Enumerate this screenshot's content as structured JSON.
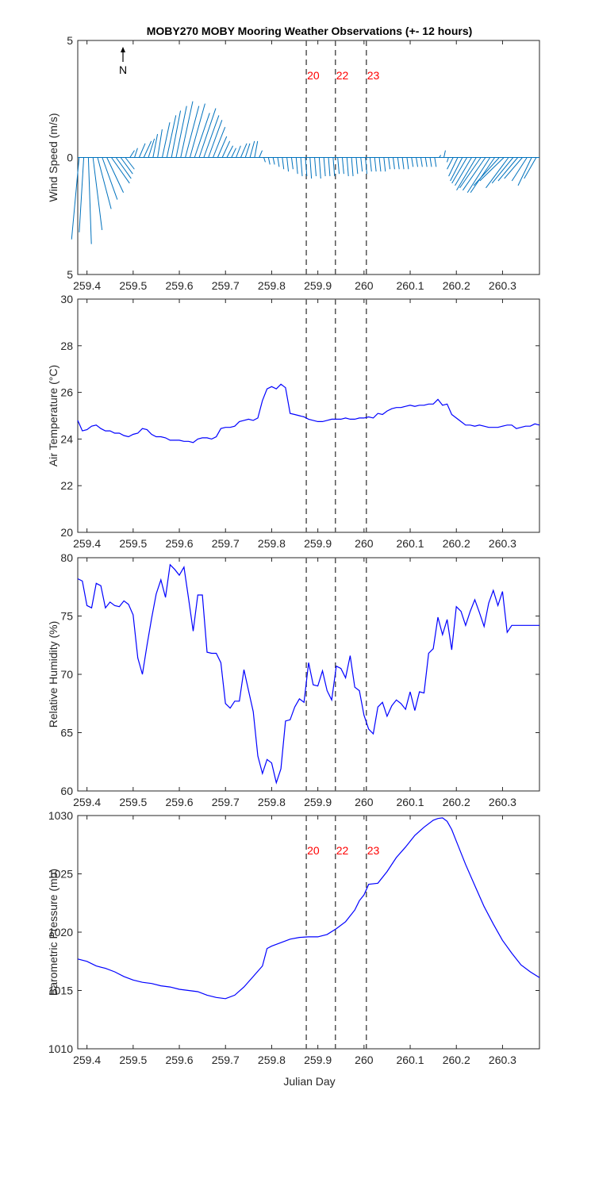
{
  "title": "MOBY270 MOBY Mooring Weather Observations (+- 12 hours)",
  "x_tick_labels": [
    "259.4",
    "259.5",
    "259.6",
    "259.7",
    "259.8",
    "259.9",
    "260",
    "260.1",
    "260.2",
    "260.3"
  ],
  "xlabel": "Julian Day",
  "north_label": "N",
  "colors": {
    "line": "#0000ff",
    "barb": "#0072bd",
    "marker_line": "#555555",
    "marker_text": "#ff0000",
    "axis": "#262626"
  },
  "chart_data": [
    {
      "id": "wind",
      "type": "line",
      "ylabel": "Wind Speed (m/s)",
      "ylim": [
        -5,
        5
      ],
      "xlim": [
        259.38,
        260.38
      ],
      "ytick_labels": [
        "5",
        "0",
        "5"
      ],
      "ytick_values": [
        5,
        0,
        -5
      ],
      "marker_labels": [
        "20",
        "22",
        "23"
      ],
      "marker_x": [
        259.875,
        259.938,
        260.005
      ],
      "series": [
        {
          "x": [
            259.383,
            259.393,
            259.403,
            259.413,
            259.423,
            259.433,
            259.443,
            259.453,
            259.463,
            259.473,
            259.483,
            259.493,
            259.503,
            259.513,
            259.523,
            259.533,
            259.543,
            259.553,
            259.563,
            259.573,
            259.583,
            259.593,
            259.603,
            259.613,
            259.623,
            259.633,
            259.643,
            259.653,
            259.663,
            259.673,
            259.683,
            259.693,
            259.703,
            259.713,
            259.723,
            259.733,
            259.743,
            259.753,
            259.763,
            259.773,
            259.783,
            259.793,
            259.803,
            259.813,
            259.823,
            259.833,
            259.843,
            259.853,
            259.863,
            259.873,
            259.883,
            259.893,
            259.903,
            259.913,
            259.923,
            259.933,
            259.943,
            259.953,
            259.963,
            259.973,
            259.983,
            259.993,
            260.003,
            260.013,
            260.023,
            260.033,
            260.043,
            260.053,
            260.063,
            260.073,
            260.083,
            260.093,
            260.103,
            260.113,
            260.123,
            260.133,
            260.143,
            260.153,
            260.163,
            260.173,
            260.183,
            260.193,
            260.203,
            260.213,
            260.223,
            260.233,
            260.243,
            260.253,
            260.263,
            260.273,
            260.283,
            260.293,
            260.303,
            260.313,
            260.323,
            260.333,
            260.343,
            260.353,
            260.363,
            260.373
          ],
          "u": [
            -0.5,
            -0.3,
            0.2,
            0.6,
            0.9,
            1.0,
            1.1,
            1.2,
            1.0,
            0.8,
            0.6,
            0.3,
            0.2,
            0.4,
            0.5,
            0.4,
            0.3,
            0.3,
            0.5,
            0.6,
            0.6,
            0.7,
            0.8,
            0.9,
            1.0,
            1.0,
            1.1,
            1.0,
            0.9,
            0.8,
            0.6,
            0.5,
            0.4,
            0.3,
            0.3,
            0.4,
            0.3,
            0.3,
            0.2,
            0.2,
            0.1,
            0.1,
            0.1,
            0.1,
            0.1,
            0.1,
            0.1,
            0.1,
            0.1,
            0.1,
            0.1,
            0.1,
            0.1,
            0.1,
            0.1,
            0.1,
            0.1,
            0.1,
            0.1,
            0.1,
            0.1,
            0.1,
            0.1,
            0.1,
            0.1,
            0.1,
            0.1,
            0.1,
            0.1,
            0.1,
            0.1,
            0.1,
            0.1,
            0.1,
            0.1,
            0.1,
            0.1,
            0.1,
            0.1,
            0.1,
            -0.1,
            -0.4,
            -0.6,
            -0.8,
            -1.0,
            -1.1,
            -1.3,
            -1.4,
            -1.5,
            -1.5,
            -1.6,
            -1.7,
            -1.6,
            -1.5,
            -1.4,
            -1.3,
            -1.2,
            -1.0,
            -0.9,
            -0.8
          ],
          "v": [
            -3.5,
            -3.2,
            -3.7,
            -3.1,
            -2.2,
            -1.8,
            -1.5,
            -1.1,
            -0.9,
            -0.7,
            -0.5,
            0.3,
            0.4,
            0.6,
            0.7,
            0.8,
            1.0,
            1.2,
            1.5,
            1.8,
            2.0,
            2.2,
            2.4,
            2.2,
            2.3,
            1.9,
            2.1,
            1.8,
            1.6,
            1.3,
            0.9,
            0.7,
            0.5,
            0.4,
            0.5,
            0.6,
            0.6,
            0.7,
            0.7,
            0.3,
            -0.2,
            -0.3,
            -0.3,
            -0.4,
            -0.5,
            -0.6,
            -0.5,
            -0.7,
            -0.8,
            -0.8,
            -0.9,
            -0.8,
            -0.9,
            -0.8,
            -0.8,
            -0.8,
            -0.7,
            -0.7,
            -0.8,
            -0.8,
            -0.7,
            -0.6,
            -0.7,
            -0.6,
            -0.6,
            -0.6,
            -0.6,
            -0.5,
            -0.5,
            -0.5,
            -0.5,
            -0.5,
            -0.4,
            -0.4,
            -0.4,
            -0.4,
            -0.4,
            -0.4,
            0.1,
            0.3,
            -0.2,
            -0.5,
            -0.8,
            -1.0,
            -1.1,
            -1.2,
            -1.4,
            -1.3,
            -1.4,
            -1.5,
            -1.5,
            -1.2,
            -1.0,
            -1.3,
            -1.1,
            -1.0,
            -0.9,
            -1.0,
            -1.2,
            -0.9
          ]
        }
      ]
    },
    {
      "id": "air_temp",
      "type": "line",
      "ylabel": "Air Temperature (°C)",
      "ylim": [
        20,
        30
      ],
      "xlim": [
        259.38,
        260.38
      ],
      "ytick_labels": [
        "20",
        "22",
        "24",
        "26",
        "28",
        "30"
      ],
      "ytick_values": [
        20,
        22,
        24,
        26,
        28,
        30
      ],
      "marker_x": [
        259.875,
        259.938,
        260.005
      ],
      "series": [
        {
          "x": [
            259.38,
            259.39,
            259.4,
            259.41,
            259.42,
            259.43,
            259.44,
            259.45,
            259.46,
            259.47,
            259.48,
            259.49,
            259.5,
            259.51,
            259.52,
            259.53,
            259.54,
            259.55,
            259.56,
            259.57,
            259.58,
            259.59,
            259.6,
            259.61,
            259.62,
            259.63,
            259.64,
            259.65,
            259.66,
            259.67,
            259.68,
            259.69,
            259.7,
            259.71,
            259.72,
            259.73,
            259.74,
            259.75,
            259.76,
            259.77,
            259.78,
            259.79,
            259.8,
            259.81,
            259.82,
            259.83,
            259.84,
            259.85,
            259.86,
            259.87,
            259.88,
            259.89,
            259.9,
            259.91,
            259.92,
            259.93,
            259.94,
            259.95,
            259.96,
            259.97,
            259.98,
            259.99,
            260.0,
            260.01,
            260.02,
            260.03,
            260.04,
            260.05,
            260.06,
            260.07,
            260.08,
            260.09,
            260.1,
            260.11,
            260.12,
            260.13,
            260.14,
            260.15,
            260.16,
            260.17,
            260.18,
            260.19,
            260.2,
            260.21,
            260.22,
            260.23,
            260.24,
            260.25,
            260.26,
            260.27,
            260.28,
            260.29,
            260.3,
            260.31,
            260.32,
            260.33,
            260.34,
            260.35,
            260.36,
            260.37,
            260.38
          ],
          "values": [
            24.8,
            24.35,
            24.4,
            24.55,
            24.6,
            24.45,
            24.35,
            24.35,
            24.25,
            24.25,
            24.15,
            24.1,
            24.2,
            24.25,
            24.45,
            24.4,
            24.2,
            24.1,
            24.1,
            24.05,
            23.95,
            23.95,
            23.95,
            23.9,
            23.9,
            23.85,
            24.0,
            24.05,
            24.05,
            24.0,
            24.1,
            24.45,
            24.5,
            24.5,
            24.55,
            24.75,
            24.8,
            24.85,
            24.8,
            24.9,
            25.65,
            26.15,
            26.25,
            26.15,
            26.35,
            26.2,
            25.1,
            25.05,
            25.0,
            24.95,
            24.85,
            24.8,
            24.75,
            24.75,
            24.8,
            24.85,
            24.85,
            24.85,
            24.9,
            24.85,
            24.85,
            24.9,
            24.9,
            24.95,
            24.9,
            25.1,
            25.05,
            25.2,
            25.3,
            25.35,
            25.35,
            25.4,
            25.45,
            25.4,
            25.45,
            25.45,
            25.5,
            25.5,
            25.7,
            25.45,
            25.5,
            25.05,
            24.9,
            24.75,
            24.6,
            24.6,
            24.55,
            24.6,
            24.55,
            24.5,
            24.5,
            24.5,
            24.55,
            24.6,
            24.6,
            24.45,
            24.5,
            24.55,
            24.55,
            24.65,
            24.6
          ]
        }
      ]
    },
    {
      "id": "humidity",
      "type": "line",
      "ylabel": "Relative Humidity (%)",
      "ylim": [
        60,
        80
      ],
      "xlim": [
        259.38,
        260.38
      ],
      "ytick_labels": [
        "60",
        "65",
        "70",
        "75",
        "80"
      ],
      "ytick_values": [
        60,
        65,
        70,
        75,
        80
      ],
      "marker_x": [
        259.875,
        259.938,
        260.005
      ],
      "series": [
        {
          "x": [
            259.38,
            259.39,
            259.4,
            259.41,
            259.42,
            259.43,
            259.44,
            259.45,
            259.46,
            259.47,
            259.48,
            259.49,
            259.5,
            259.51,
            259.52,
            259.53,
            259.54,
            259.55,
            259.56,
            259.57,
            259.58,
            259.59,
            259.6,
            259.61,
            259.62,
            259.63,
            259.64,
            259.65,
            259.66,
            259.67,
            259.68,
            259.69,
            259.7,
            259.71,
            259.72,
            259.73,
            259.74,
            259.75,
            259.76,
            259.77,
            259.78,
            259.79,
            259.8,
            259.81,
            259.82,
            259.83,
            259.84,
            259.85,
            259.86,
            259.87,
            259.88,
            259.89,
            259.9,
            259.91,
            259.92,
            259.93,
            259.94,
            259.95,
            259.96,
            259.97,
            259.98,
            259.99,
            260.0,
            260.01,
            260.02,
            260.03,
            260.04,
            260.05,
            260.06,
            260.07,
            260.08,
            260.09,
            260.1,
            260.11,
            260.12,
            260.13,
            260.14,
            260.15,
            260.16,
            260.17,
            260.18,
            260.19,
            260.2,
            260.21,
            260.22,
            260.23,
            260.24,
            260.25,
            260.26,
            260.27,
            260.28,
            260.29,
            260.3,
            260.31,
            260.32,
            260.33,
            260.34,
            260.35,
            260.36,
            260.37,
            260.38
          ],
          "values": [
            78.2,
            78.0,
            75.9,
            75.7,
            77.8,
            77.6,
            75.7,
            76.2,
            75.9,
            75.8,
            76.3,
            76.0,
            75.1,
            71.4,
            70.0,
            72.5,
            74.8,
            76.9,
            78.1,
            76.6,
            79.4,
            79.0,
            78.5,
            79.2,
            76.5,
            73.7,
            76.8,
            76.8,
            71.9,
            71.8,
            71.8,
            71.0,
            67.5,
            67.1,
            67.7,
            67.7,
            70.4,
            68.6,
            66.8,
            63.0,
            61.5,
            62.7,
            62.4,
            60.7,
            61.9,
            66.0,
            66.1,
            67.2,
            67.9,
            67.6,
            71.0,
            69.1,
            69.0,
            70.3,
            68.6,
            67.8,
            70.7,
            70.5,
            69.7,
            71.6,
            68.9,
            68.6,
            66.5,
            65.3,
            64.9,
            67.2,
            67.6,
            66.4,
            67.3,
            67.8,
            67.5,
            67.0,
            68.5,
            66.9,
            68.5,
            68.4,
            71.8,
            72.2,
            74.9,
            73.4,
            74.7,
            72.1,
            75.8,
            75.4,
            74.2,
            75.4,
            76.4,
            75.3,
            74.1,
            76.1,
            77.2,
            75.9,
            77.1,
            73.6,
            74.2,
            74.2,
            74.2,
            74.2,
            74.2,
            74.2,
            74.2
          ]
        }
      ]
    },
    {
      "id": "pressure",
      "type": "line",
      "ylabel": "Barometric Pressure (mb)",
      "ylim": [
        1010,
        1030
      ],
      "xlim": [
        259.38,
        260.38
      ],
      "ytick_labels": [
        "1010",
        "1015",
        "1020",
        "1025",
        "1030"
      ],
      "ytick_values": [
        1010,
        1015,
        1020,
        1025,
        1030
      ],
      "marker_labels": [
        "20",
        "22",
        "23"
      ],
      "marker_x": [
        259.875,
        259.938,
        260.005
      ],
      "series": [
        {
          "x": [
            259.38,
            259.4,
            259.42,
            259.44,
            259.46,
            259.48,
            259.5,
            259.52,
            259.54,
            259.56,
            259.58,
            259.6,
            259.62,
            259.64,
            259.66,
            259.68,
            259.7,
            259.72,
            259.74,
            259.76,
            259.78,
            259.79,
            259.8,
            259.82,
            259.84,
            259.86,
            259.88,
            259.9,
            259.92,
            259.94,
            259.96,
            259.98,
            259.99,
            260.0,
            260.01,
            260.03,
            260.05,
            260.07,
            260.09,
            260.11,
            260.13,
            260.15,
            260.16,
            260.17,
            260.18,
            260.19,
            260.2,
            260.22,
            260.24,
            260.26,
            260.28,
            260.3,
            260.32,
            260.34,
            260.36,
            260.38
          ],
          "values": [
            1017.7,
            1017.5,
            1017.1,
            1016.9,
            1016.6,
            1016.2,
            1015.9,
            1015.7,
            1015.6,
            1015.4,
            1015.3,
            1015.1,
            1015.0,
            1014.9,
            1014.6,
            1014.4,
            1014.3,
            1014.6,
            1015.3,
            1016.2,
            1017.1,
            1018.6,
            1018.8,
            1019.1,
            1019.4,
            1019.55,
            1019.6,
            1019.6,
            1019.8,
            1020.3,
            1020.9,
            1021.9,
            1022.7,
            1023.2,
            1024.1,
            1024.2,
            1025.2,
            1026.4,
            1027.3,
            1028.3,
            1029.0,
            1029.6,
            1029.75,
            1029.8,
            1029.5,
            1028.8,
            1027.8,
            1025.8,
            1024.0,
            1022.2,
            1020.7,
            1019.3,
            1018.2,
            1017.2,
            1016.6,
            1016.1
          ]
        }
      ]
    }
  ]
}
